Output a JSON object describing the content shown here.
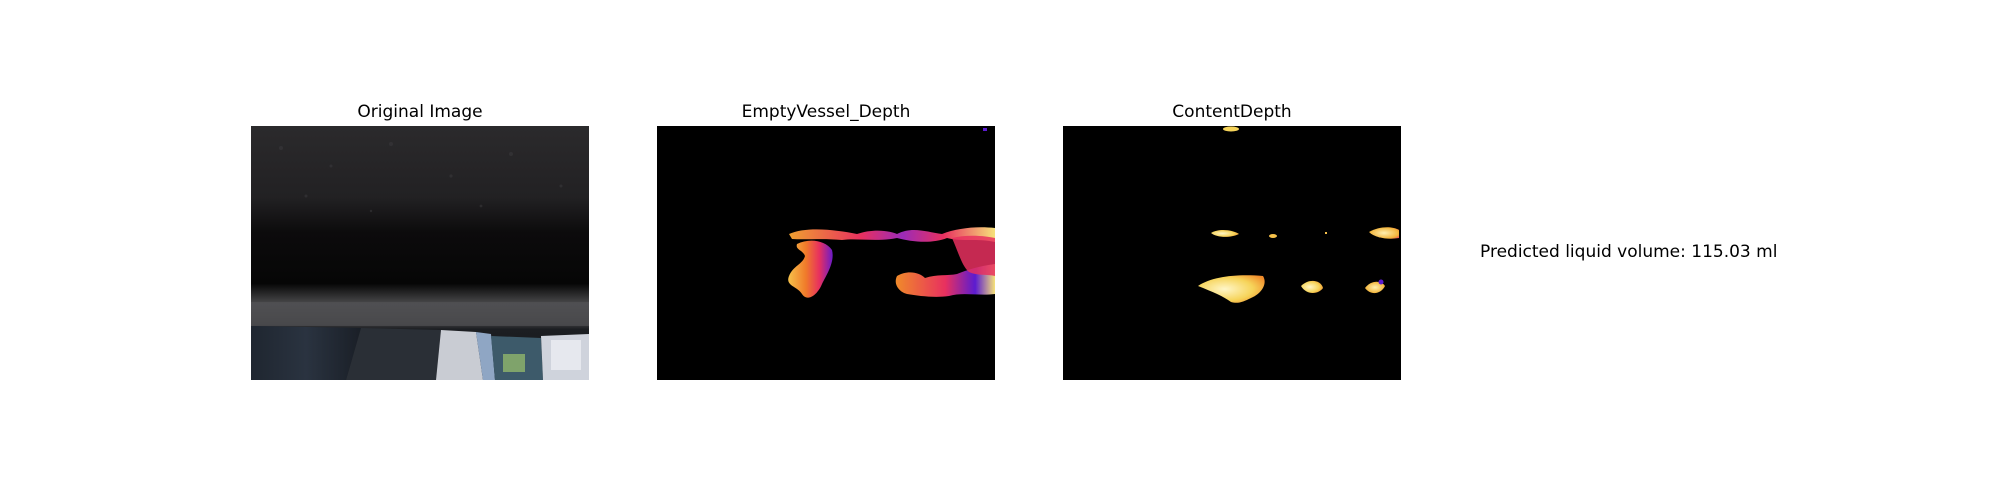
{
  "panels": [
    {
      "title": "Original Image"
    },
    {
      "title": "EmptyVessel_Depth"
    },
    {
      "title": "ContentDepth"
    }
  ],
  "result": {
    "text": "Predicted liquid volume: 115.03 ml"
  },
  "colors": {
    "background": "#ffffff",
    "depth_background": "#000000",
    "depth_map_low": "#5b1bd0",
    "depth_map_mid": "#e8305f",
    "depth_map_high": "#f6e27a"
  }
}
